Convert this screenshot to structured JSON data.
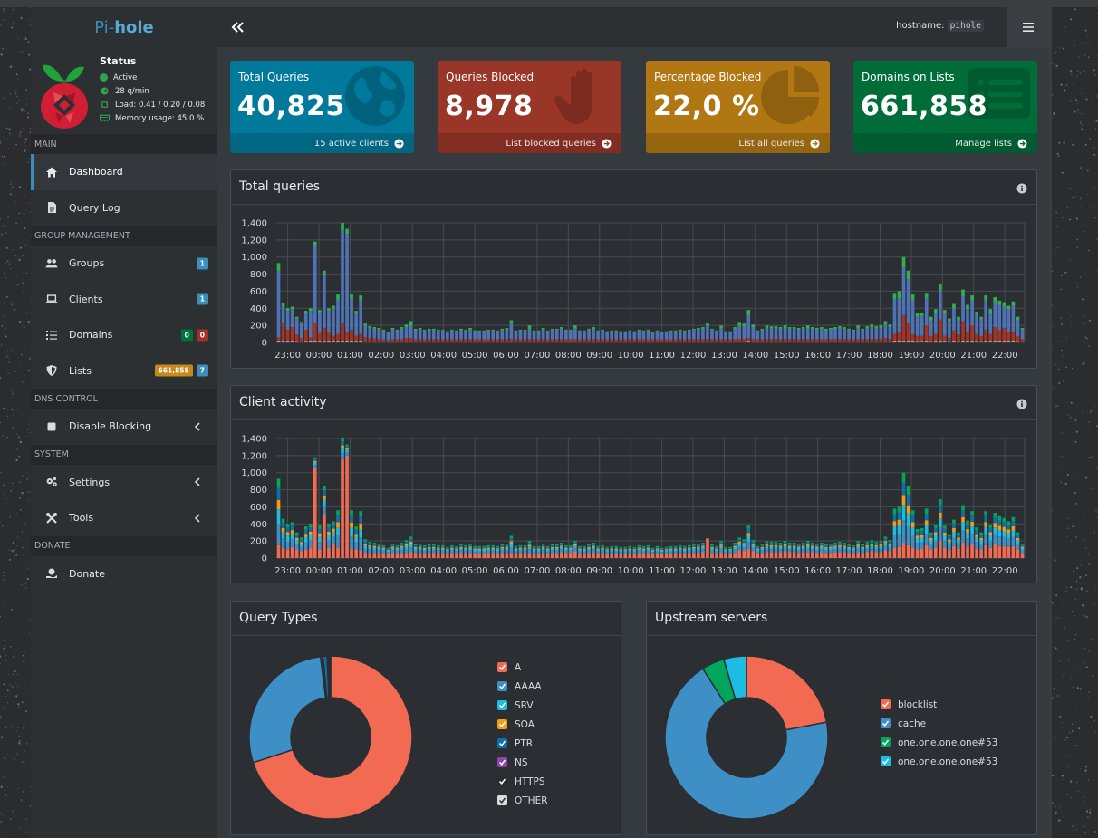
{
  "brand": {
    "pi": "Pi-",
    "hole": "hole"
  },
  "status": {
    "title": "Status",
    "state": "Active",
    "rate": "28 q/min",
    "load": "Load: 0.41 / 0.20 / 0.08",
    "memory": "Memory usage: 45.0 %"
  },
  "sidebar": {
    "headers": {
      "main": "MAIN",
      "group": "GROUP MANAGEMENT",
      "dns": "DNS CONTROL",
      "system": "SYSTEM",
      "donate": "DONATE"
    },
    "items": {
      "dashboard": "Dashboard",
      "querylog": "Query Log",
      "groups": "Groups",
      "groups_badge": "1",
      "clients": "Clients",
      "clients_badge": "1",
      "domains": "Domains",
      "domains_badge_allow": "0",
      "domains_badge_deny": "0",
      "lists": "Lists",
      "lists_badge_domains": "661,858",
      "lists_badge_lists": "7",
      "disable": "Disable Blocking",
      "settings": "Settings",
      "tools": "Tools",
      "donate": "Donate"
    }
  },
  "topbar": {
    "hostname_label": "hostname:",
    "hostname_value": "pihole"
  },
  "boxes": [
    {
      "label": "Total Queries",
      "value": "40,825",
      "footer": "15 active clients",
      "color": "#00799b",
      "icon": "globe-icon"
    },
    {
      "label": "Queries Blocked",
      "value": "8,978",
      "footer": "List blocked queries",
      "color": "#993628",
      "icon": "hand-icon"
    },
    {
      "label": "Percentage Blocked",
      "value": "22,0 %",
      "footer": "List all queries",
      "color": "#b07713",
      "icon": "pie-icon"
    },
    {
      "label": "Domains on Lists",
      "value": "661,858",
      "footer": "Manage lists",
      "color": "#006d39",
      "icon": "list-icon"
    }
  ],
  "panels": {
    "total": "Total queries",
    "clients": "Client activity",
    "types": "Query Types",
    "upstream": "Upstream servers"
  },
  "chart_data": [
    {
      "type": "bar",
      "title": "Total queries",
      "stacked": true,
      "xticks": [
        "23:00",
        "00:00",
        "01:00",
        "02:00",
        "03:00",
        "04:00",
        "05:00",
        "06:00",
        "07:00",
        "08:00",
        "09:00",
        "10:00",
        "11:00",
        "12:00",
        "13:00",
        "14:00",
        "15:00",
        "16:00",
        "17:00",
        "18:00",
        "19:00",
        "20:00",
        "21:00",
        "22:00"
      ],
      "yticks": [
        0,
        200,
        400,
        600,
        800,
        1000,
        1200,
        1400
      ],
      "ylim": [
        0,
        1400
      ],
      "interval_minutes": 10,
      "series_colors": {
        "blocked": "#a73325",
        "cached": "#4f72b5",
        "forwarded": "#2fb14c",
        "other": "#bdbdbd"
      },
      "totals": [
        930,
        460,
        400,
        420,
        300,
        240,
        370,
        400,
        1180,
        380,
        840,
        400,
        430,
        560,
        1400,
        1330,
        560,
        370,
        550,
        220,
        190,
        180,
        170,
        150,
        120,
        170,
        150,
        180,
        210,
        250,
        160,
        170,
        150,
        160,
        160,
        150,
        150,
        130,
        150,
        140,
        160,
        150,
        170,
        140,
        140,
        140,
        150,
        150,
        140,
        160,
        170,
        260,
        140,
        150,
        150,
        200,
        140,
        140,
        170,
        140,
        160,
        160,
        180,
        150,
        150,
        200,
        140,
        140,
        160,
        180,
        140,
        150,
        130,
        140,
        140,
        130,
        130,
        140,
        130,
        150,
        140,
        150,
        120,
        140,
        120,
        130,
        140,
        140,
        150,
        140,
        150,
        160,
        170,
        180,
        230,
        160,
        140,
        200,
        130,
        130,
        180,
        240,
        220,
        380,
        210,
        140,
        160,
        200,
        190,
        190,
        180,
        200,
        180,
        180,
        170,
        180,
        200,
        180,
        170,
        180,
        160,
        170,
        180,
        190,
        180,
        160,
        150,
        200,
        160,
        190,
        210,
        190,
        200,
        250,
        210,
        580,
        600,
        1000,
        840,
        560,
        340,
        350,
        580,
        300,
        390,
        690,
        380,
        280,
        450,
        300,
        620,
        440,
        550,
        360,
        300,
        550,
        390,
        530,
        490,
        470,
        430,
        480,
        300,
        170
      ],
      "blocked": [
        40,
        200,
        130,
        160,
        80,
        40,
        130,
        40,
        200,
        90,
        150,
        100,
        60,
        80,
        200,
        100,
        130,
        60,
        80,
        50,
        40,
        40,
        30,
        30,
        20,
        30,
        30,
        30,
        40,
        40,
        30,
        30,
        30,
        30,
        30,
        30,
        30,
        30,
        30,
        30,
        30,
        30,
        30,
        30,
        30,
        30,
        30,
        30,
        30,
        30,
        30,
        30,
        30,
        30,
        30,
        30,
        30,
        30,
        30,
        30,
        30,
        30,
        30,
        30,
        30,
        30,
        30,
        30,
        30,
        30,
        30,
        30,
        30,
        30,
        30,
        30,
        30,
        30,
        30,
        30,
        30,
        30,
        30,
        30,
        30,
        30,
        30,
        30,
        30,
        30,
        30,
        30,
        30,
        30,
        30,
        30,
        30,
        30,
        30,
        30,
        30,
        30,
        30,
        30,
        30,
        30,
        30,
        30,
        30,
        30,
        30,
        30,
        30,
        30,
        30,
        30,
        30,
        30,
        30,
        30,
        30,
        30,
        30,
        30,
        30,
        30,
        30,
        30,
        30,
        30,
        30,
        30,
        30,
        40,
        30,
        80,
        100,
        300,
        200,
        80,
        60,
        60,
        180,
        60,
        80,
        250,
        60,
        40,
        120,
        80,
        230,
        100,
        180,
        80,
        60,
        130,
        80,
        160,
        120,
        150,
        100,
        110,
        60,
        30
      ],
      "forwarded": [
        90,
        40,
        30,
        30,
        20,
        20,
        30,
        30,
        40,
        30,
        50,
        30,
        30,
        60,
        80,
        60,
        50,
        30,
        60,
        20,
        20,
        20,
        20,
        20,
        10,
        20,
        10,
        20,
        30,
        50,
        20,
        20,
        10,
        20,
        20,
        10,
        10,
        10,
        10,
        10,
        20,
        10,
        20,
        10,
        10,
        10,
        10,
        10,
        10,
        20,
        20,
        40,
        10,
        10,
        10,
        40,
        10,
        10,
        20,
        10,
        10,
        10,
        20,
        10,
        10,
        30,
        10,
        10,
        10,
        30,
        10,
        10,
        10,
        10,
        10,
        10,
        10,
        10,
        10,
        10,
        10,
        10,
        10,
        10,
        10,
        10,
        10,
        10,
        10,
        10,
        10,
        10,
        20,
        20,
        40,
        10,
        10,
        30,
        10,
        10,
        20,
        40,
        30,
        60,
        30,
        10,
        20,
        30,
        20,
        20,
        20,
        30,
        20,
        20,
        20,
        20,
        30,
        20,
        20,
        20,
        20,
        20,
        20,
        20,
        20,
        20,
        20,
        30,
        20,
        20,
        30,
        20,
        30,
        40,
        30,
        70,
        80,
        120,
        100,
        60,
        40,
        40,
        60,
        40,
        50,
        80,
        40,
        30,
        50,
        40,
        80,
        50,
        60,
        40,
        30,
        60,
        40,
        60,
        50,
        50,
        40,
        50,
        40,
        20
      ]
    },
    {
      "type": "bar",
      "title": "Client activity",
      "stacked": true,
      "xticks": [
        "23:00",
        "00:00",
        "01:00",
        "02:00",
        "03:00",
        "04:00",
        "05:00",
        "06:00",
        "07:00",
        "08:00",
        "09:00",
        "10:00",
        "11:00",
        "12:00",
        "13:00",
        "14:00",
        "15:00",
        "16:00",
        "17:00",
        "18:00",
        "19:00",
        "20:00",
        "21:00",
        "22:00"
      ],
      "yticks": [
        0,
        200,
        400,
        600,
        800,
        1000,
        1200,
        1400
      ],
      "ylim": [
        0,
        1400
      ],
      "series_colors": [
        "#f36a53",
        "#3f8fc7",
        "#1cbce3",
        "#f39c12",
        "#0f6fa8",
        "#00a65a",
        "#1a3a5a"
      ],
      "totals": [
        930,
        460,
        400,
        420,
        300,
        240,
        370,
        400,
        1180,
        380,
        840,
        400,
        430,
        560,
        1400,
        1330,
        560,
        370,
        550,
        220,
        190,
        180,
        170,
        150,
        120,
        170,
        150,
        180,
        210,
        250,
        160,
        170,
        150,
        160,
        160,
        150,
        150,
        130,
        150,
        140,
        160,
        150,
        170,
        140,
        140,
        140,
        150,
        150,
        140,
        160,
        170,
        260,
        140,
        150,
        150,
        200,
        140,
        140,
        170,
        140,
        160,
        160,
        180,
        150,
        150,
        200,
        140,
        140,
        160,
        180,
        140,
        150,
        130,
        140,
        140,
        130,
        130,
        140,
        130,
        150,
        140,
        150,
        120,
        140,
        120,
        130,
        140,
        140,
        150,
        140,
        150,
        160,
        170,
        180,
        230,
        160,
        140,
        200,
        130,
        130,
        180,
        240,
        220,
        380,
        210,
        140,
        160,
        200,
        190,
        190,
        180,
        200,
        180,
        180,
        170,
        180,
        200,
        180,
        170,
        180,
        160,
        170,
        180,
        190,
        180,
        160,
        150,
        200,
        160,
        190,
        210,
        190,
        200,
        250,
        210,
        580,
        600,
        1000,
        840,
        560,
        340,
        350,
        580,
        300,
        390,
        690,
        380,
        280,
        450,
        300,
        620,
        440,
        550,
        360,
        300,
        550,
        390,
        530,
        490,
        470,
        430,
        480,
        300,
        170
      ],
      "primary": [
        150,
        120,
        100,
        130,
        100,
        80,
        100,
        120,
        1050,
        100,
        500,
        120,
        160,
        120,
        1150,
        1200,
        110,
        100,
        90,
        60,
        60,
        60,
        60,
        60,
        50,
        60,
        60,
        60,
        60,
        70,
        60,
        60,
        50,
        60,
        60,
        60,
        60,
        50,
        60,
        60,
        60,
        60,
        60,
        50,
        50,
        50,
        60,
        60,
        50,
        60,
        60,
        60,
        50,
        60,
        60,
        60,
        50,
        50,
        60,
        50,
        60,
        60,
        70,
        60,
        60,
        80,
        50,
        50,
        60,
        70,
        50,
        60,
        50,
        50,
        50,
        50,
        50,
        50,
        50,
        60,
        50,
        60,
        50,
        50,
        50,
        50,
        50,
        50,
        60,
        50,
        60,
        60,
        60,
        70,
        360,
        60,
        50,
        70,
        50,
        50,
        60,
        90,
        80,
        110,
        80,
        50,
        60,
        70,
        70,
        70,
        70,
        80,
        70,
        70,
        60,
        70,
        70,
        70,
        60,
        70,
        60,
        60,
        70,
        70,
        70,
        60,
        60,
        70,
        60,
        70,
        80,
        70,
        70,
        90,
        80,
        120,
        130,
        180,
        150,
        120,
        100,
        110,
        150,
        100,
        120,
        200,
        120,
        90,
        140,
        110,
        180,
        130,
        160,
        110,
        100,
        150,
        120,
        160,
        140,
        140,
        130,
        140,
        100,
        60
      ]
    },
    {
      "type": "pie",
      "title": "Query Types",
      "donut": true,
      "labels": [
        "A",
        "AAAA",
        "SRV",
        "SOA",
        "PTR",
        "NS",
        "HTTPS",
        "OTHER"
      ],
      "values": [
        70.0,
        28.0,
        0.3,
        0.2,
        0.8,
        0.1,
        0.5,
        0.1
      ],
      "colors": [
        "#f36a53",
        "#3f8fc7",
        "#1cbce3",
        "#f39c12",
        "#0f6fa8",
        "#8e44ad",
        "#2a2c2f",
        "#dcdcdc"
      ]
    },
    {
      "type": "pie",
      "title": "Upstream servers",
      "donut": true,
      "labels": [
        "blocklist",
        "cache",
        "one.one.one.one#53",
        "one.one.one.one#53"
      ],
      "values": [
        22.0,
        69.0,
        4.5,
        4.5
      ],
      "colors": [
        "#f36a53",
        "#3f8fc7",
        "#00a65a",
        "#1cbce3"
      ]
    }
  ]
}
